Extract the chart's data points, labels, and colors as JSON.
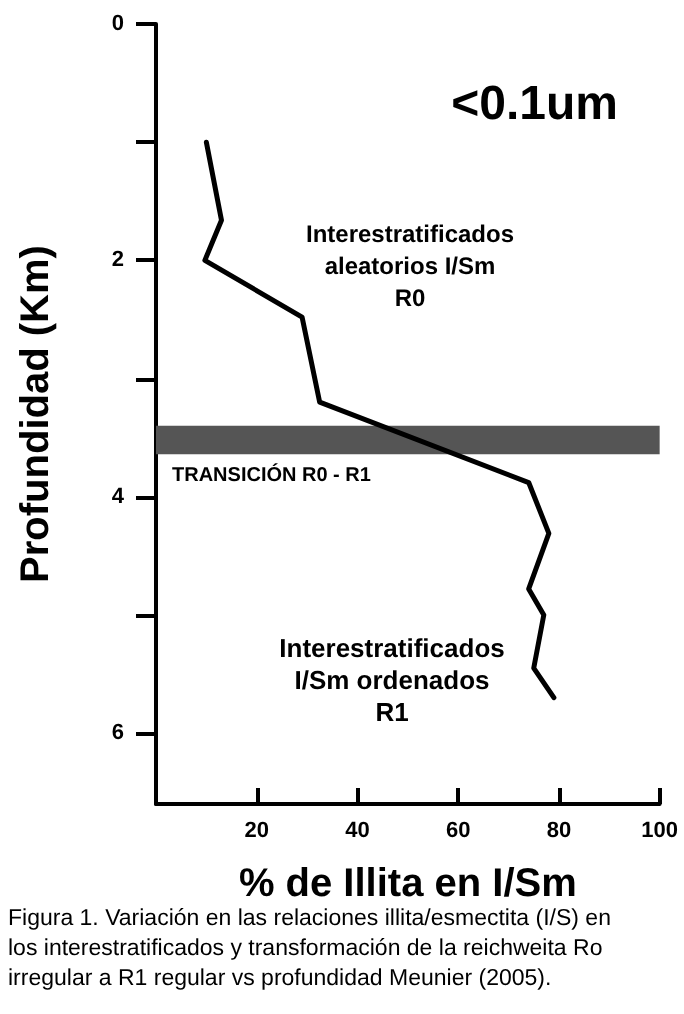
{
  "chart_data": {
    "type": "line",
    "title": "<0.1um",
    "xlabel": "% de Illita en I/Sm",
    "ylabel": "Profundidad (Km)",
    "series": [
      {
        "color": "#000000",
        "x": [
          10,
          13,
          9.7,
          29,
          32.5,
          74,
          78,
          74,
          77,
          75,
          79
        ],
        "values": [
          1.0,
          1.66,
          2.0,
          2.48,
          3.2,
          3.88,
          4.31,
          4.78,
          5.0,
          5.45,
          5.7
        ]
      }
    ],
    "xlim": [
      0,
      100
    ],
    "xticks": [
      20,
      40,
      60,
      80,
      100
    ],
    "ylim": [
      6.6,
      0
    ],
    "yticks": [
      0,
      {
        "value": 1,
        "label": null
      },
      2,
      {
        "value": 3,
        "label": null
      },
      4,
      {
        "value": 5,
        "label": null
      },
      6
    ],
    "bands": [
      {
        "axis": "y",
        "from": 3.4,
        "to": 3.64,
        "color": "#555555"
      }
    ],
    "annotations": [
      "Interestratificados\naleatorios I/Sm\nR0",
      "TRANSICIÓN R0 - R1",
      "Interestratificados\nI/Sm ordenados\nR1",
      "Figura 1. Variación en las relaciones illita/esmectita (I/S) en\nlos interestratificados y transformación de la reichweita Ro\nirregular a R1 regular vs profundidad Meunier (2005)."
    ],
    "grid": false,
    "marker": "none",
    "line_style": "solid"
  }
}
